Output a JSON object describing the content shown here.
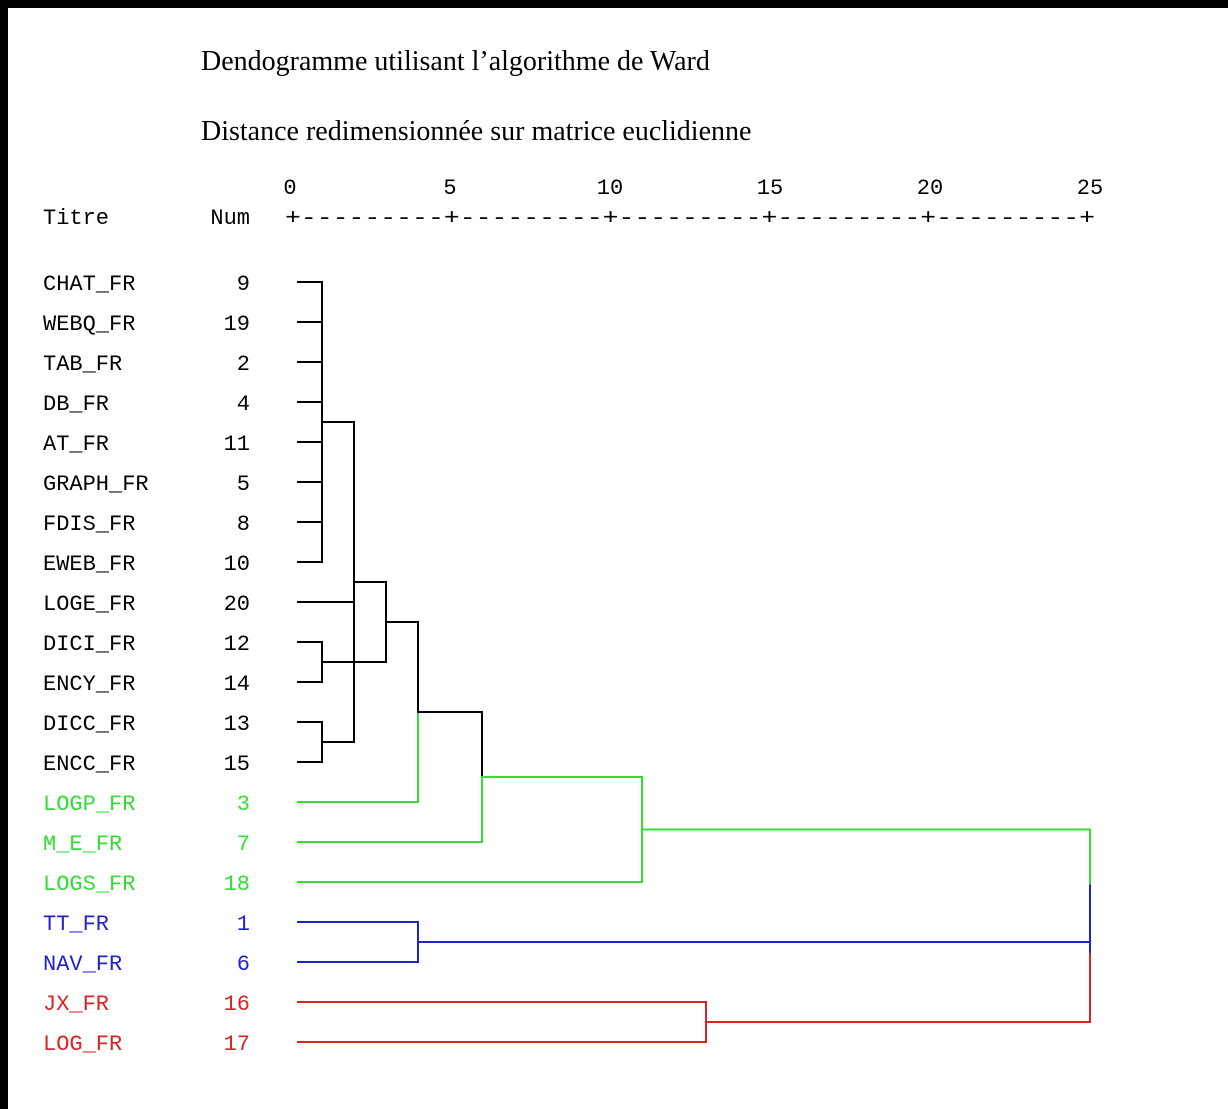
{
  "chart_data": {
    "type": "dendrogram",
    "title": "Dendogramme utilisant l’algorithme de Ward",
    "subtitle": "Distance redimensionnée sur matrice euclidienne",
    "header_label": "Titre",
    "num_label": "Num",
    "axis_ticks": [
      "0",
      "5",
      "10",
      "15",
      "20",
      "25"
    ],
    "axis_range": [
      0,
      25
    ],
    "axis_rule": "+---------+---------+---------+---------+---------+",
    "colors": {
      "black": "#000000",
      "green": "#33dd33",
      "blue": "#2222cc",
      "red": "#dd2222"
    },
    "leaves": [
      {
        "label": "CHAT_FR",
        "num": "9",
        "color": "black"
      },
      {
        "label": "WEBQ_FR",
        "num": "19",
        "color": "black"
      },
      {
        "label": "TAB_FR",
        "num": "2",
        "color": "black"
      },
      {
        "label": "DB_FR",
        "num": "4",
        "color": "black"
      },
      {
        "label": "AT_FR",
        "num": "11",
        "color": "black"
      },
      {
        "label": "GRAPH_FR",
        "num": "5",
        "color": "black"
      },
      {
        "label": "FDIS_FR",
        "num": "8",
        "color": "black"
      },
      {
        "label": "EWEB_FR",
        "num": "10",
        "color": "black"
      },
      {
        "label": "LOGE_FR",
        "num": "20",
        "color": "black"
      },
      {
        "label": "DICI_FR",
        "num": "12",
        "color": "black"
      },
      {
        "label": "ENCY_FR",
        "num": "14",
        "color": "black"
      },
      {
        "label": "DICC_FR",
        "num": "13",
        "color": "black"
      },
      {
        "label": "ENCC_FR",
        "num": "15",
        "color": "black"
      },
      {
        "label": "LOGP_FR",
        "num": "3",
        "color": "green"
      },
      {
        "label": "M_E_FR",
        "num": "7",
        "color": "green"
      },
      {
        "label": "LOGS_FR",
        "num": "18",
        "color": "green"
      },
      {
        "label": "TT_FR",
        "num": "1",
        "color": "blue"
      },
      {
        "label": "NAV_FR",
        "num": "6",
        "color": "blue"
      },
      {
        "label": "JX_FR",
        "num": "16",
        "color": "red"
      },
      {
        "label": "LOG_FR",
        "num": "17",
        "color": "red"
      }
    ],
    "merges": [
      {
        "id": "A",
        "children": [
          0,
          1,
          2,
          3,
          4,
          5,
          6,
          7
        ],
        "height": 1.0,
        "color": "black"
      },
      {
        "id": "B",
        "children": [
          9,
          10
        ],
        "height": 1.0,
        "color": "black"
      },
      {
        "id": "C",
        "children": [
          11,
          12
        ],
        "height": 1.0,
        "color": "black"
      },
      {
        "id": "D",
        "children": [
          "A",
          8,
          "C"
        ],
        "height": 2.0,
        "color": "black"
      },
      {
        "id": "E",
        "children": [
          "D",
          "B"
        ],
        "height": 3.0,
        "color": "black"
      },
      {
        "id": "F",
        "children": [
          "E",
          13
        ],
        "height": 4.0,
        "color": "black",
        "child_colors": [
          "black",
          "green"
        ]
      },
      {
        "id": "G",
        "children": [
          "F",
          14
        ],
        "height": 6.0,
        "color": "black",
        "child_colors": [
          "black",
          "green"
        ]
      },
      {
        "id": "H",
        "children": [
          "G",
          15
        ],
        "height": 11.0,
        "color": "green",
        "child_colors": [
          "green",
          "green"
        ]
      },
      {
        "id": "I",
        "children": [
          16,
          17
        ],
        "height": 4.0,
        "color": "blue"
      },
      {
        "id": "J",
        "children": [
          "H",
          "I"
        ],
        "height": 25.0,
        "color": "green",
        "child_colors": [
          "green",
          "blue"
        ]
      },
      {
        "id": "K",
        "children": [
          18,
          19
        ],
        "height": 13.0,
        "color": "red"
      },
      {
        "id": "L",
        "children": [
          "J",
          "K"
        ],
        "height": 25.0,
        "color": "blue",
        "child_colors": [
          "blue",
          "red"
        ]
      }
    ]
  }
}
